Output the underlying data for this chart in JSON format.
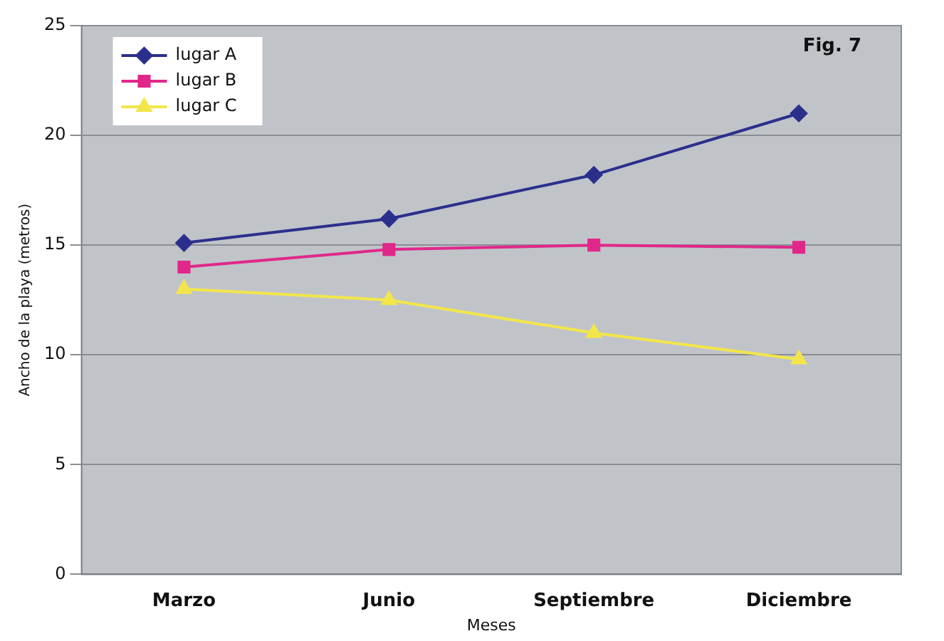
{
  "chart_data": {
    "type": "line",
    "xlabel": "Meses",
    "ylabel": "Ancho de la playa (metros)",
    "categories": [
      "Marzo",
      "Junio",
      "Septiembre",
      "Diciembre"
    ],
    "series": [
      {
        "name": "lugar A",
        "color": "#2b2f8c",
        "marker": "diamond",
        "values": [
          15.1,
          16.2,
          18.2,
          21
        ]
      },
      {
        "name": "lugar B",
        "color": "#e0288a",
        "marker": "square",
        "values": [
          14,
          14.8,
          15,
          14.9
        ]
      },
      {
        "name": "lugar C",
        "color": "#f2e64a",
        "marker": "triangle",
        "values": [
          13,
          12.5,
          11,
          9.8
        ]
      }
    ],
    "ylim": [
      0,
      25
    ],
    "yticks": [
      0,
      5,
      10,
      15,
      20,
      25
    ],
    "grid": "y",
    "legend": "top left",
    "annotations": [
      "Fig. 7"
    ]
  }
}
